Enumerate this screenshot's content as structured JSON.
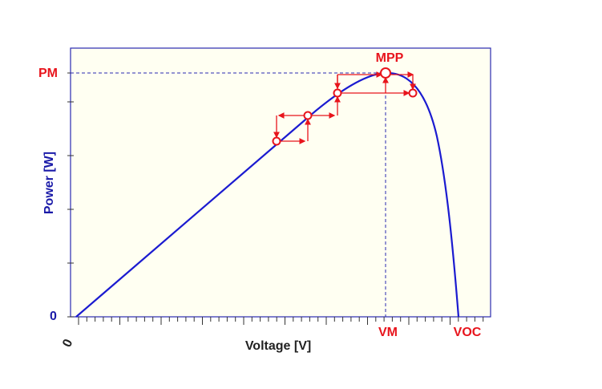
{
  "axis": {
    "x_title": "Voltage [V]",
    "y_title": "Power [W]",
    "x_origin": "0",
    "y_origin": "0"
  },
  "labels": {
    "pm": "PM",
    "vm": "VM",
    "voc": "VOC",
    "mpp": "MPP"
  }
}
